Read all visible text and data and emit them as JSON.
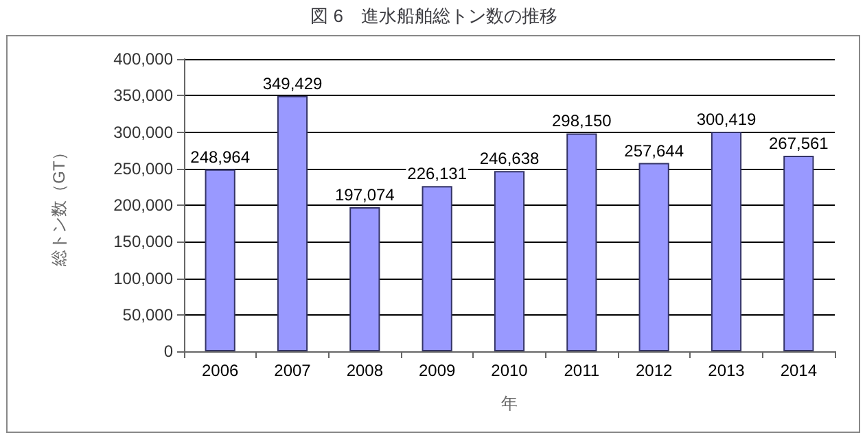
{
  "chart_data": {
    "type": "bar",
    "title": "図 6　進水船舶総トン数の推移",
    "xlabel": "年",
    "ylabel": "総トン数（GT）",
    "categories": [
      "2006",
      "2007",
      "2008",
      "2009",
      "2010",
      "2011",
      "2012",
      "2013",
      "2014"
    ],
    "values": [
      248964,
      349429,
      197074,
      226131,
      246638,
      298150,
      257644,
      300419,
      267561
    ],
    "value_labels": [
      "248,964",
      "349,429",
      "197,074",
      "226,131",
      "246,638",
      "298,150",
      "257,644",
      "300,419",
      "267,561"
    ],
    "color": "#9999ff",
    "ylim": [
      0,
      400000
    ],
    "yticks": [
      0,
      {
        "value": 50000,
        "label": "50,000"
      },
      {
        "value": 100000,
        "label": "100,000"
      },
      {
        "value": 150000,
        "label": "150,000"
      },
      {
        "value": 200000,
        "label": "200,000"
      },
      {
        "value": 250000,
        "label": "250,000"
      },
      {
        "value": 300000,
        "label": "300,000"
      },
      {
        "value": 350000,
        "label": "350,000"
      },
      {
        "value": 400000,
        "label": "400,000"
      }
    ],
    "grid": "y"
  }
}
